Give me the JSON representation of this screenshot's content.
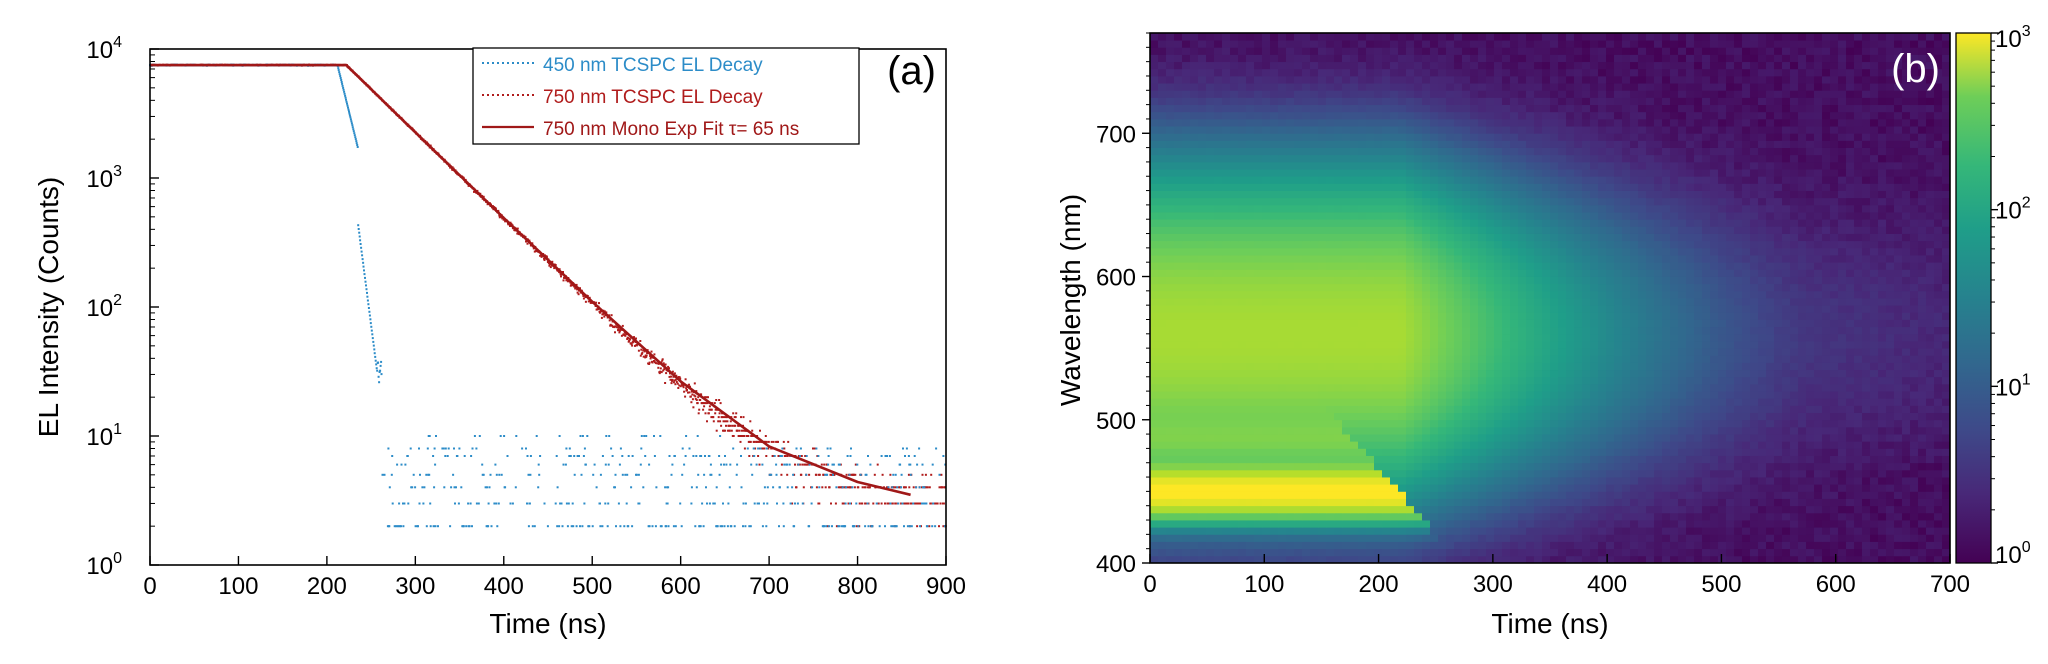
{
  "chart_data": [
    {
      "type": "scatter",
      "panel_label": "(a)",
      "xlabel": "Time (ns)",
      "ylabel": "EL Intensity (Counts)",
      "xlim": [
        0,
        900
      ],
      "ylim": [
        1,
        10000
      ],
      "yscale": "log",
      "x_ticks": [
        "0",
        "100",
        "200",
        "300",
        "400",
        "500",
        "600",
        "700",
        "800",
        "900"
      ],
      "y_ticks": [
        {
          "base": "10",
          "exp": "0"
        },
        {
          "base": "10",
          "exp": "1"
        },
        {
          "base": "10",
          "exp": "2"
        },
        {
          "base": "10",
          "exp": "3"
        },
        {
          "base": "10",
          "exp": "4"
        }
      ],
      "legend_position": "top-right",
      "series": [
        {
          "name": "450 nm TCSPC EL Decay",
          "style": "dotted",
          "color": "#2c8cc8",
          "plateau_value": 7500,
          "plateau_end_x": 212,
          "decay_end_x": 262,
          "noise_floor_levels": [
            2,
            3,
            4,
            5,
            6,
            7,
            8,
            10
          ],
          "noise_floor_x_range": [
            262,
            900
          ]
        },
        {
          "name": "750 nm TCSPC EL Decay",
          "style": "dotted",
          "color": "#b01c1c",
          "plateau_value": 7500,
          "plateau_end_x": 222,
          "decay_lifetime_ns": 65,
          "background": 3,
          "x_range": [
            0,
            900
          ]
        },
        {
          "name": "750 nm Mono Exp Fit τ= 65 ns",
          "style": "solid",
          "color": "#a01818",
          "points": [
            [
              0,
              7500
            ],
            [
              222,
              7500
            ],
            [
              300,
              2260
            ],
            [
              400,
              490
            ],
            [
              500,
              110
            ],
            [
              600,
              26.5
            ],
            [
              700,
              8.3
            ],
            [
              800,
              4.4
            ],
            [
              860,
              3.5
            ]
          ]
        }
      ]
    },
    {
      "type": "heatmap",
      "panel_label": "(b)",
      "xlabel": "Time (ns)",
      "ylabel": "Wavelength (nm)",
      "xlim": [
        0,
        700
      ],
      "ylim": [
        400,
        770
      ],
      "x_ticks": [
        "0",
        "100",
        "200",
        "300",
        "400",
        "500",
        "600",
        "700"
      ],
      "y_ticks": [
        "400",
        "500",
        "600",
        "700"
      ],
      "colormap": "viridis",
      "colorbar": {
        "scale": "log",
        "range": [
          1,
          1000
        ],
        "ticks": [
          {
            "base": "10",
            "exp": "0"
          },
          {
            "base": "10",
            "exp": "1"
          },
          {
            "base": "10",
            "exp": "2"
          },
          {
            "base": "10",
            "exp": "3"
          }
        ]
      },
      "features": [
        {
          "band": "450 nm peak",
          "wavelength_nm": 450,
          "peak_counts": 1000,
          "ends_at_ns": 240
        },
        {
          "band": "broad emission",
          "wavelength_nm": 560,
          "peak_counts": 400,
          "decay_lifetime_ns": 65
        }
      ]
    }
  ]
}
